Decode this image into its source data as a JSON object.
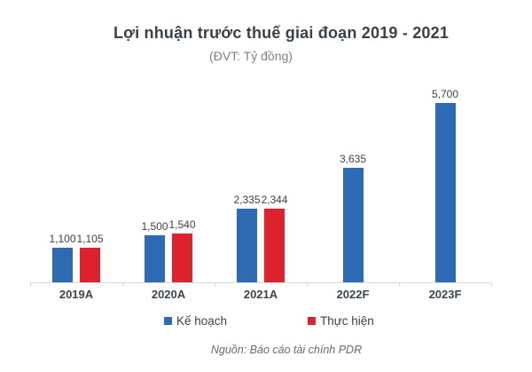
{
  "chart_data": {
    "type": "bar",
    "title": "Lợi nhuận trước thuế giai đoạn 2019 - 2021",
    "subtitle": "(ĐVT: Tỷ đồng)",
    "categories": [
      "2019A",
      "2020A",
      "2021A",
      "2022F",
      "2023F"
    ],
    "series": [
      {
        "name": "Kế hoạch",
        "color": "#2D6CB4",
        "values": [
          1100,
          1500,
          2335,
          3635,
          5700
        ]
      },
      {
        "name": "Thực hiện",
        "color": "#DD222E",
        "values": [
          1105,
          1540,
          2344,
          null,
          null
        ]
      }
    ],
    "ylim": [
      0,
      6000
    ],
    "grid": false,
    "legend_position": "bottom",
    "value_labels": true
  },
  "footer": {
    "source": "Nguồn: Báo cáo tài chính PDR"
  },
  "colors": {
    "axis": "#D9D9D9",
    "title_text": "#3B4147",
    "subtitle_text": "#7F7F7F",
    "value_label_text": "#404040",
    "category_label_text": "#3F454D",
    "source_text": "#6A6A6A"
  }
}
